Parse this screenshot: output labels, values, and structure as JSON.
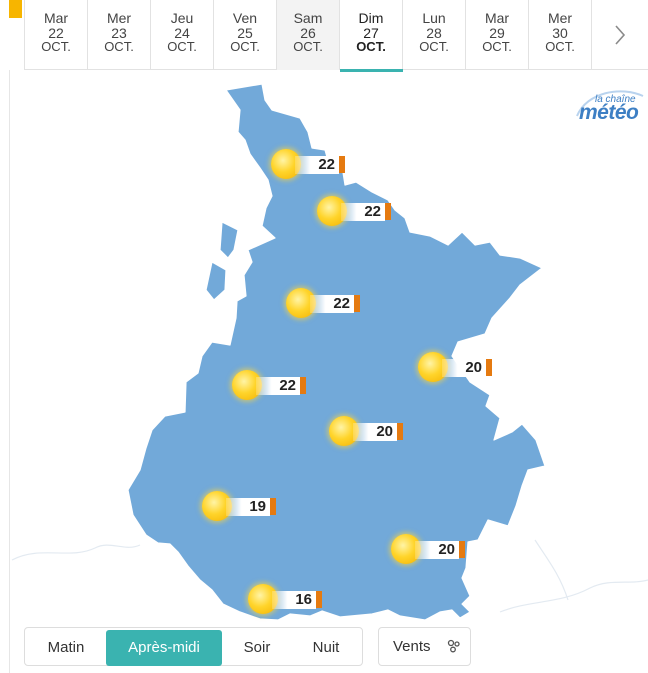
{
  "days": [
    {
      "dow": "Mar",
      "num": "22",
      "mon": "OCT."
    },
    {
      "dow": "Mer",
      "num": "23",
      "mon": "OCT."
    },
    {
      "dow": "Jeu",
      "num": "24",
      "mon": "OCT."
    },
    {
      "dow": "Ven",
      "num": "25",
      "mon": "OCT."
    },
    {
      "dow": "Sam",
      "num": "26",
      "mon": "OCT."
    },
    {
      "dow": "Dim",
      "num": "27",
      "mon": "OCT."
    },
    {
      "dow": "Lun",
      "num": "28",
      "mon": "OCT."
    },
    {
      "dow": "Mar",
      "num": "29",
      "mon": "OCT."
    },
    {
      "dow": "Mer",
      "num": "30",
      "mon": "OCT."
    }
  ],
  "selected_day": "Dim 27 OCT.",
  "next_arrow_icon": "chevron-right-icon",
  "logo": {
    "small": "la chaîne",
    "main": "météo"
  },
  "stations": [
    {
      "temp": "22",
      "icon": "sun-icon"
    },
    {
      "temp": "22",
      "icon": "sun-icon"
    },
    {
      "temp": "22",
      "icon": "sun-icon"
    },
    {
      "temp": "20",
      "icon": "sun-icon"
    },
    {
      "temp": "22",
      "icon": "sun-icon"
    },
    {
      "temp": "20",
      "icon": "sun-icon"
    },
    {
      "temp": "19",
      "icon": "sun-icon"
    },
    {
      "temp": "20",
      "icon": "sun-icon"
    },
    {
      "temp": "16",
      "icon": "sun-icon"
    }
  ],
  "periods": {
    "morning": "Matin",
    "afternoon": "Après-midi",
    "evening": "Soir",
    "night": "Nuit",
    "selected": "Après-midi"
  },
  "winds": {
    "label": "Vents",
    "icon": "wind-icon"
  },
  "colors": {
    "accent": "#3ab3b0",
    "region": "#72a9d9",
    "temp_bar": "#e57a10",
    "tab_marker": "#f7b500"
  }
}
